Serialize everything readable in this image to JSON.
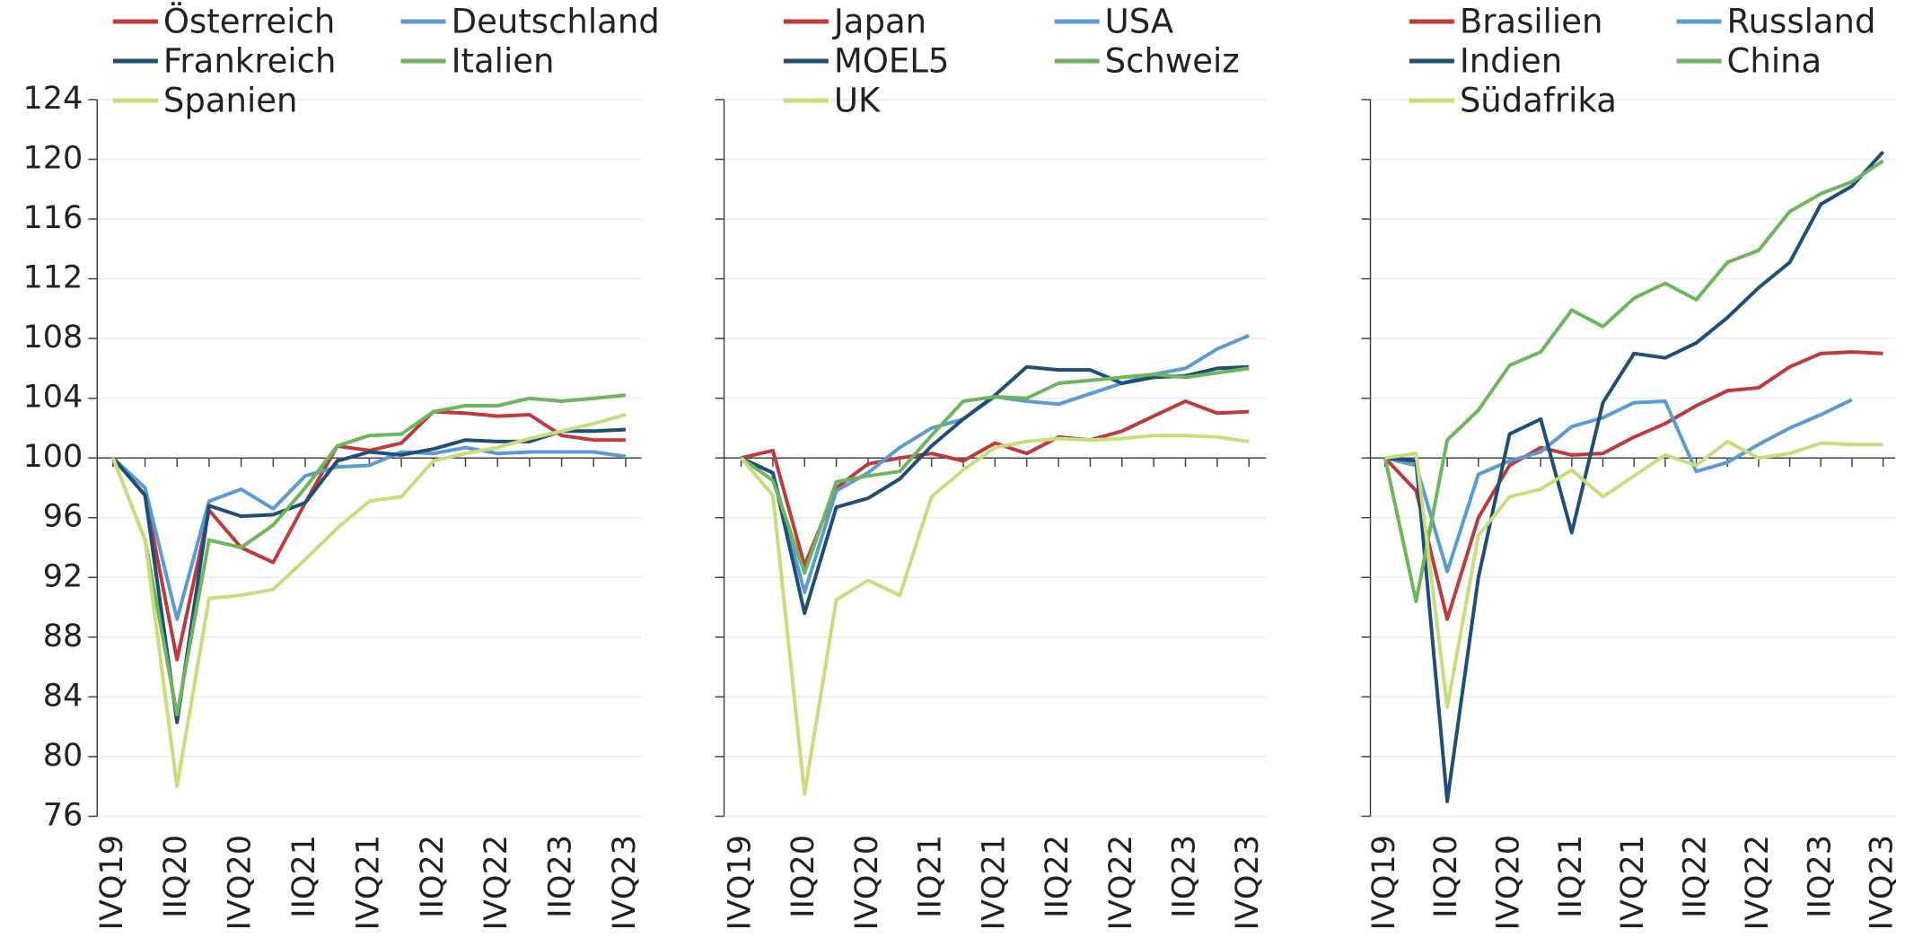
{
  "chart_data": [
    {
      "type": "line",
      "categories": [
        "IVQ19",
        null,
        "IIQ20",
        null,
        "IVQ20",
        null,
        "IIQ21",
        null,
        "IVQ21",
        null,
        "IIQ22",
        null,
        "IVQ22",
        null,
        "IIQ23",
        null,
        "IVQ23"
      ],
      "ylim": [
        76,
        124
      ],
      "yticks": [
        76,
        80,
        84,
        88,
        92,
        96,
        100,
        104,
        108,
        112,
        116,
        120,
        124
      ],
      "grid": true,
      "series": [
        {
          "name": "Österreich",
          "color": "#c0393b",
          "values": [
            100,
            97.5,
            86.5,
            96.5,
            94,
            93,
            97,
            100.8,
            100.5,
            101,
            103.1,
            103,
            102.8,
            102.9,
            101.5,
            101.2,
            101.2
          ]
        },
        {
          "name": "Deutschland",
          "color": "#5b9bd5",
          "values": [
            100,
            98,
            89.2,
            97.1,
            97.9,
            96.6,
            98.8,
            99.4,
            99.5,
            100.4,
            100.3,
            100.7,
            100.3,
            100.4,
            100.4,
            100.4,
            100.1
          ]
        },
        {
          "name": "Frankreich",
          "color": "#1f4e79",
          "values": [
            100,
            97.5,
            82.3,
            96.8,
            96.1,
            96.2,
            97,
            99.8,
            100.4,
            100.2,
            100.6,
            101.2,
            101.1,
            101.1,
            101.8,
            101.8,
            101.9
          ]
        },
        {
          "name": "Italien",
          "color": "#6db65b",
          "values": [
            100,
            94.5,
            82.8,
            94.5,
            94,
            95.5,
            98,
            100.8,
            101.5,
            101.6,
            103.1,
            103.5,
            103.5,
            104,
            103.8,
            104,
            104.2
          ]
        },
        {
          "name": "Spanien",
          "color": "#c8dd7c",
          "values": [
            100,
            94.5,
            78,
            90.6,
            90.8,
            91.2,
            93.2,
            95.3,
            97.1,
            97.4,
            99.8,
            100.3,
            100.7,
            101.3,
            101.8,
            102.3,
            102.9
          ]
        }
      ]
    },
    {
      "type": "line",
      "categories": [
        "IVQ19",
        null,
        "IIQ20",
        null,
        "IVQ20",
        null,
        "IIQ21",
        null,
        "IVQ21",
        null,
        "IIQ22",
        null,
        "IVQ22",
        null,
        "IIQ23",
        null,
        "IVQ23"
      ],
      "ylim": [
        76,
        124
      ],
      "yticks": [
        76,
        80,
        84,
        88,
        92,
        96,
        100,
        104,
        108,
        112,
        116,
        120,
        124
      ],
      "grid": true,
      "series": [
        {
          "name": "Japan",
          "color": "#c0393b",
          "values": [
            100,
            100.5,
            92.8,
            98,
            99.6,
            100,
            100.3,
            99.8,
            101,
            100.3,
            101.4,
            101.2,
            101.8,
            102.8,
            103.8,
            103,
            103.1
          ]
        },
        {
          "name": "USA",
          "color": "#5b9bd5",
          "values": [
            100,
            99,
            91,
            97.8,
            99,
            100.7,
            102,
            102.6,
            104.1,
            103.8,
            103.6,
            104.3,
            105,
            105.6,
            106,
            107.3,
            108.2
          ]
        },
        {
          "name": "MOEL5",
          "color": "#1f4e79",
          "values": [
            100,
            99,
            89.6,
            96.7,
            97.3,
            98.6,
            100.8,
            102.6,
            104.2,
            106.1,
            105.9,
            105.9,
            105,
            105.4,
            105.5,
            106,
            106.1
          ]
        },
        {
          "name": "Schweiz",
          "color": "#6db65b",
          "values": [
            100,
            98.5,
            92.3,
            98.4,
            98.8,
            99.1,
            101.5,
            103.8,
            104.1,
            104,
            105,
            105.2,
            105.4,
            105.6,
            105.4,
            105.7,
            106
          ]
        },
        {
          "name": "UK",
          "color": "#c8dd7c",
          "values": [
            100,
            97.5,
            77.5,
            90.5,
            91.8,
            90.8,
            97.4,
            99.2,
            100.7,
            101.1,
            101.3,
            101.2,
            101.3,
            101.5,
            101.5,
            101.4,
            101.1
          ]
        }
      ]
    },
    {
      "type": "line",
      "categories": [
        "IVQ19",
        null,
        "IIQ20",
        null,
        "IVQ20",
        null,
        "IIQ21",
        null,
        "IVQ21",
        null,
        "IIQ22",
        null,
        "IVQ22",
        null,
        "IIQ23",
        null,
        "IVQ23"
      ],
      "ylim": [
        76,
        124
      ],
      "yticks": [
        76,
        80,
        84,
        88,
        92,
        96,
        100,
        104,
        108,
        112,
        116,
        120,
        124
      ],
      "grid": true,
      "series": [
        {
          "name": "Brasilien",
          "color": "#c0393b",
          "values": [
            100,
            97.8,
            89.2,
            96,
            99.5,
            100.7,
            100.2,
            100.3,
            101.4,
            102.3,
            103.5,
            104.5,
            104.7,
            106.1,
            107,
            107.1,
            107
          ]
        },
        {
          "name": "Russland",
          "color": "#5b9bd5",
          "values": [
            100,
            99.5,
            92.4,
            98.9,
            99.8,
            100.4,
            102.1,
            102.7,
            103.7,
            103.8,
            99.1,
            99.7,
            100.9,
            102,
            102.9,
            103.9,
            null
          ]
        },
        {
          "name": "Indien",
          "color": "#1f4e79",
          "values": [
            100,
            99.8,
            77,
            92,
            101.6,
            102.6,
            95,
            103.7,
            107,
            106.7,
            107.7,
            109.4,
            111.4,
            113.1,
            117,
            118.2,
            120.5
          ]
        },
        {
          "name": "China",
          "color": "#6db65b",
          "values": [
            100,
            90.4,
            101.2,
            103.2,
            106.2,
            107.1,
            109.9,
            108.8,
            110.7,
            111.7,
            110.6,
            113.1,
            113.9,
            116.5,
            117.7,
            118.5,
            119.9
          ]
        },
        {
          "name": "Südafrika",
          "color": "#c8dd7c",
          "values": [
            100,
            100.3,
            83.3,
            94.8,
            97.4,
            97.9,
            99.2,
            97.4,
            98.8,
            100.2,
            99.5,
            101.1,
            100,
            100.3,
            101,
            100.9,
            100.9
          ]
        }
      ]
    }
  ]
}
